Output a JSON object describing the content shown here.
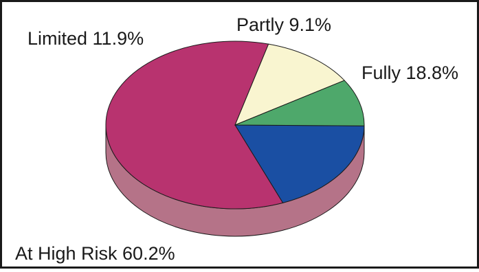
{
  "chart_data": {
    "type": "pie",
    "style": "3d",
    "slices": [
      {
        "label": "Fully",
        "value": 18.8,
        "display": "Fully 18.8%",
        "color": "#1a4fa3"
      },
      {
        "label": "At High Risk",
        "value": 60.2,
        "display": "At High Risk 60.2%",
        "color": "#b8336f"
      },
      {
        "label": "Limited",
        "value": 11.9,
        "display": "Limited 11.9%",
        "color": "#f9f5d0"
      },
      {
        "label": "Partly",
        "value": 9.1,
        "display": "Partly 9.1%",
        "color": "#4ea86b"
      }
    ],
    "side_color": "#b57388",
    "border_color": "#1a1a1a",
    "legend": "none"
  }
}
